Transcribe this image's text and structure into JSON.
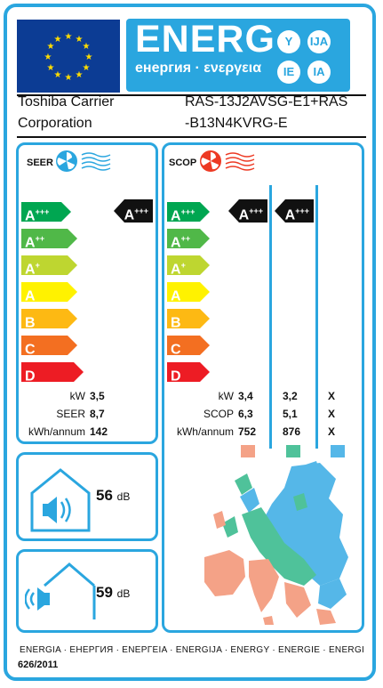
{
  "header": {
    "energy_word": "ENERG",
    "energy_sub": "енергия · ενεργεια",
    "languages": [
      "Y",
      "IJA",
      "IE",
      "IA"
    ],
    "supplier_line1": "Toshiba Carrier",
    "supplier_line2": "Corporation",
    "model_line1": "RAS-13J2AVSG-E1+RAS",
    "model_line2": "-B13N4KVRG-E"
  },
  "colors": {
    "border": "#2aa6df",
    "eu_blue": "#0c3c94",
    "eu_star": "#ffdd00",
    "class_colors": [
      "#00a651",
      "#50b848",
      "#bed630",
      "#fff200",
      "#fdb913",
      "#f36f21",
      "#ed1c24"
    ],
    "zone_warmer": "#f4a287",
    "zone_average": "#4fc29a",
    "zone_colder": "#55b7e8"
  },
  "seer_panel": {
    "label": "SEER",
    "classes": [
      {
        "base": "A",
        "sup": "+++"
      },
      {
        "base": "A",
        "sup": "++"
      },
      {
        "base": "A",
        "sup": "+"
      },
      {
        "base": "A",
        "sup": ""
      },
      {
        "base": "B",
        "sup": ""
      },
      {
        "base": "C",
        "sup": ""
      },
      {
        "base": "D",
        "sup": ""
      }
    ],
    "indicator": {
      "base": "A",
      "sup": "+++"
    },
    "rows": [
      {
        "label": "kW",
        "value": "3,5"
      },
      {
        "label": "SEER",
        "value": "8,7"
      },
      {
        "label": "kWh/annum",
        "value": "142"
      }
    ]
  },
  "scop_panel": {
    "label": "SCOP",
    "classes": [
      {
        "base": "A",
        "sup": "+++"
      },
      {
        "base": "A",
        "sup": "++"
      },
      {
        "base": "A",
        "sup": "+"
      },
      {
        "base": "A",
        "sup": ""
      },
      {
        "base": "B",
        "sup": ""
      },
      {
        "base": "C",
        "sup": ""
      },
      {
        "base": "D",
        "sup": ""
      }
    ],
    "indicators": [
      {
        "base": "A",
        "sup": "+++"
      },
      {
        "base": "A",
        "sup": "+++"
      }
    ],
    "rows": [
      {
        "label": "kW",
        "v1": "3,4",
        "v2": "3,2",
        "v3": "X"
      },
      {
        "label": "SCOP",
        "v1": "6,3",
        "v2": "5,1",
        "v3": "X"
      },
      {
        "label": "kWh/annum",
        "v1": "752",
        "v2": "876",
        "v3": "X"
      }
    ]
  },
  "noise": {
    "indoor_value": "56",
    "outdoor_value": "59",
    "unit": "dB"
  },
  "footer": {
    "languages": "ENERGIA · ЕНЕРГИЯ · ΕΝΕΡΓΕΙΑ · ENERGIJA · ENERGY · ENERGIE · ENERGI",
    "regulation": "626/2011"
  }
}
